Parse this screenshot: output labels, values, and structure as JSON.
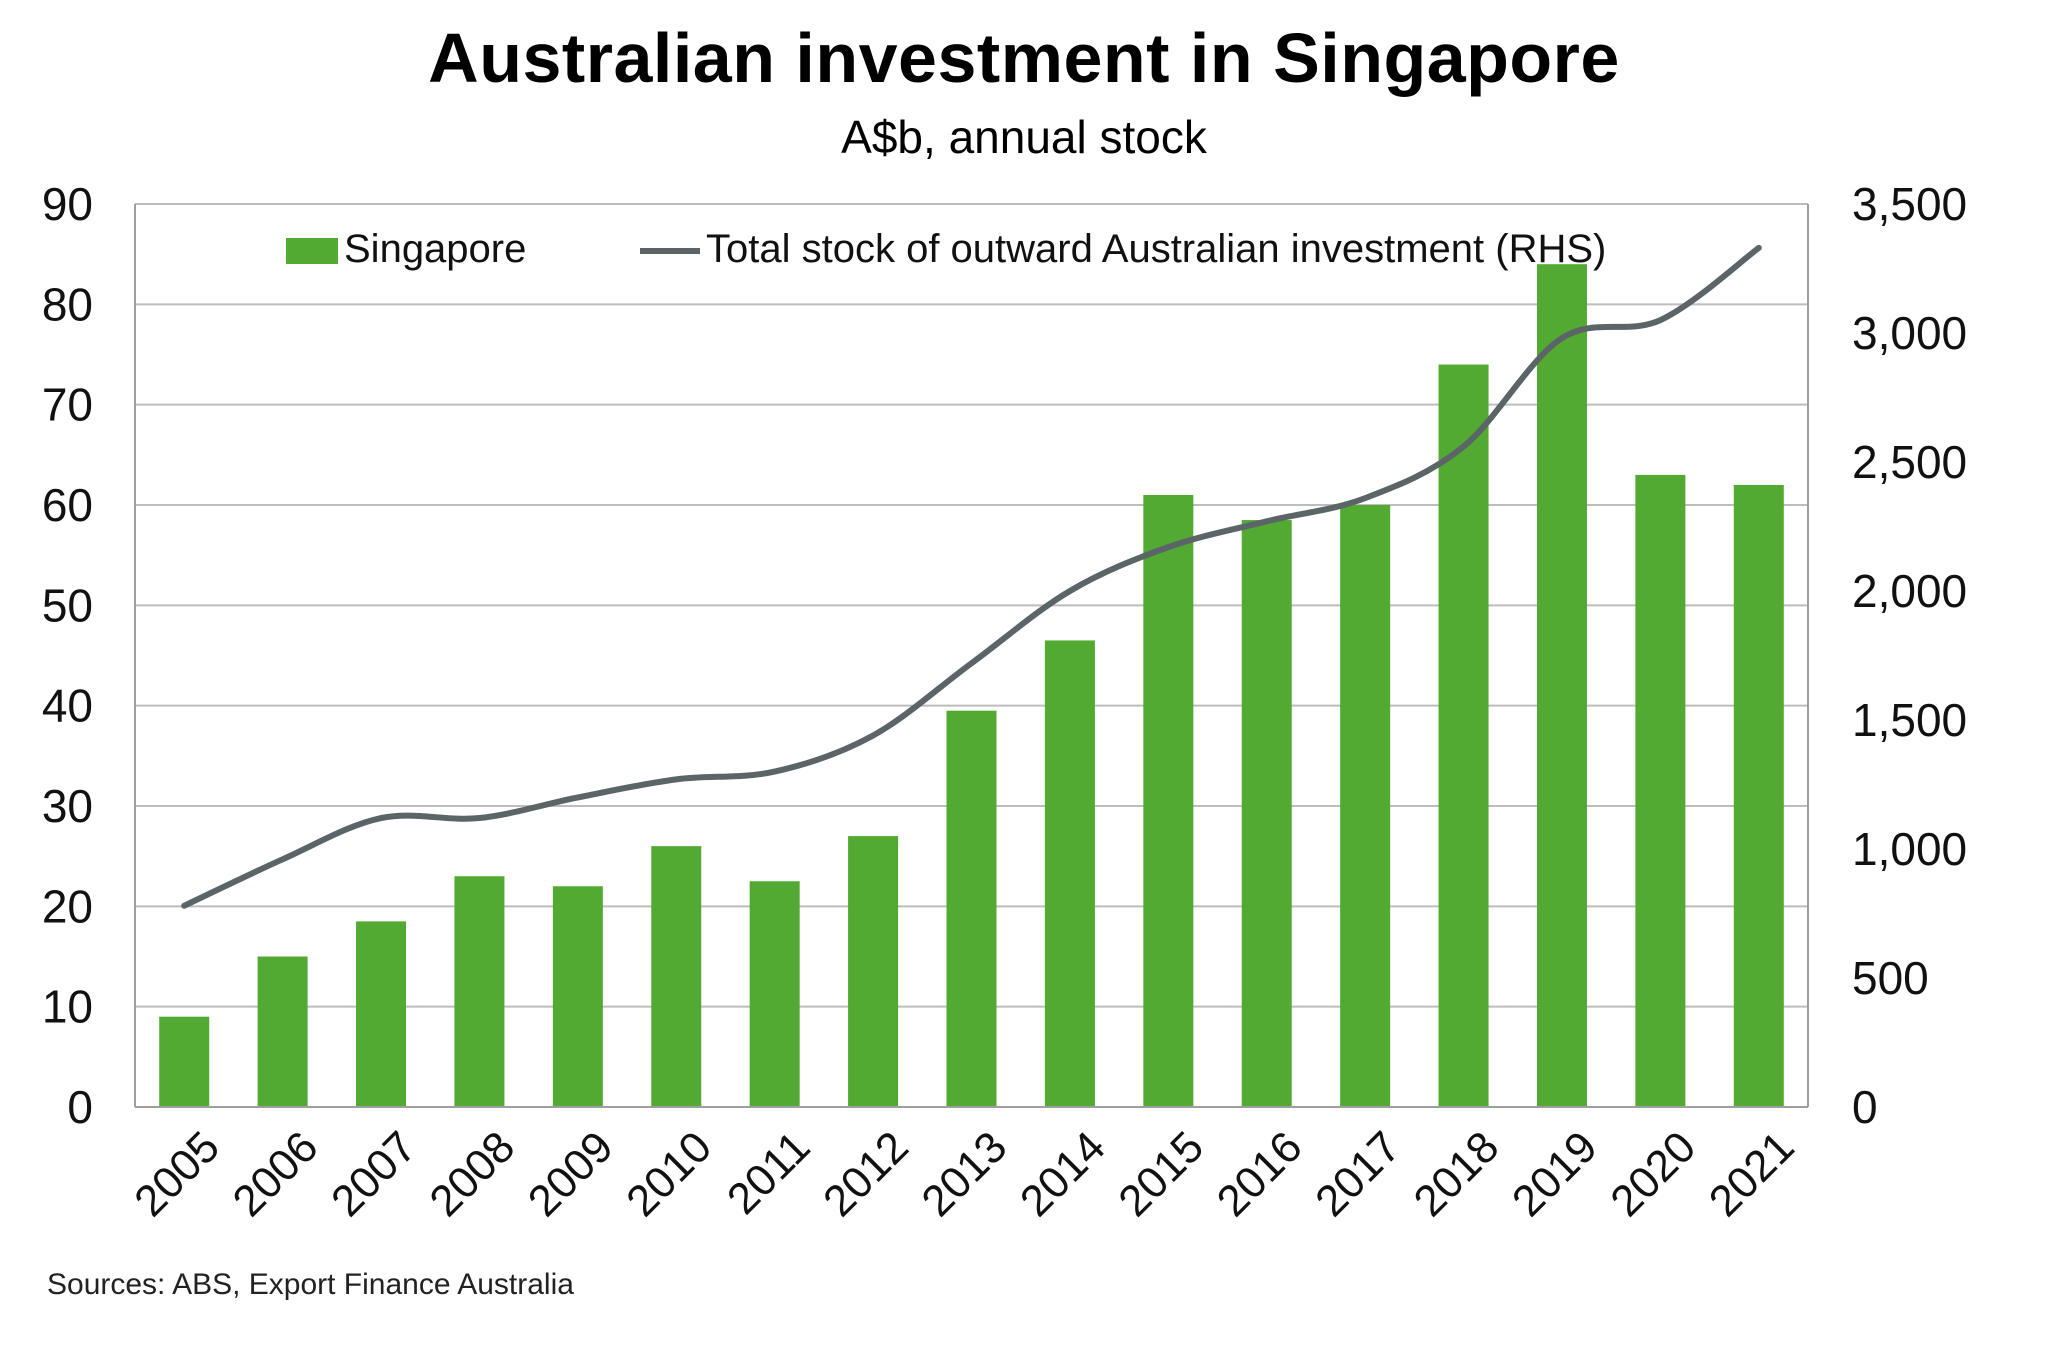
{
  "title": "Australian investment in Singapore",
  "subtitle": "A$b, annual stock",
  "source": "Sources: ABS, Export Finance Australia",
  "colors": {
    "bar": "#52aa32",
    "line": "#5b6466",
    "grid": "#bdbdbd",
    "axis": "#9e9e9e"
  },
  "chart_data": {
    "type": "bar",
    "categories": [
      "2005",
      "2006",
      "2007",
      "2008",
      "2009",
      "2010",
      "2011",
      "2012",
      "2013",
      "2014",
      "2015",
      "2016",
      "2017",
      "2018",
      "2019",
      "2020",
      "2021"
    ],
    "series": [
      {
        "name": "Singapore",
        "type": "bar",
        "axis": "left",
        "values": [
          9,
          15,
          18.5,
          23,
          22,
          26,
          22.5,
          27,
          39.5,
          46.5,
          61,
          58.5,
          60,
          74,
          84,
          63,
          62
        ]
      },
      {
        "name": "Total stock of outward Australian investment (RHS)",
        "type": "line",
        "axis": "right",
        "values": [
          780,
          960,
          1120,
          1120,
          1200,
          1270,
          1300,
          1440,
          1720,
          2000,
          2170,
          2270,
          2360,
          2560,
          2980,
          3050,
          3330
        ]
      }
    ],
    "ylim_left": [
      0,
      90
    ],
    "yticks_left": [
      "0",
      "10",
      "20",
      "30",
      "40",
      "50",
      "60",
      "70",
      "80",
      "90"
    ],
    "ylim_right": [
      0,
      3500
    ],
    "yticks_right": [
      "0",
      "500",
      "1,000",
      "1,500",
      "2,000",
      "2,500",
      "3,000",
      "3,500"
    ],
    "grid": true,
    "legend_position": "top"
  }
}
